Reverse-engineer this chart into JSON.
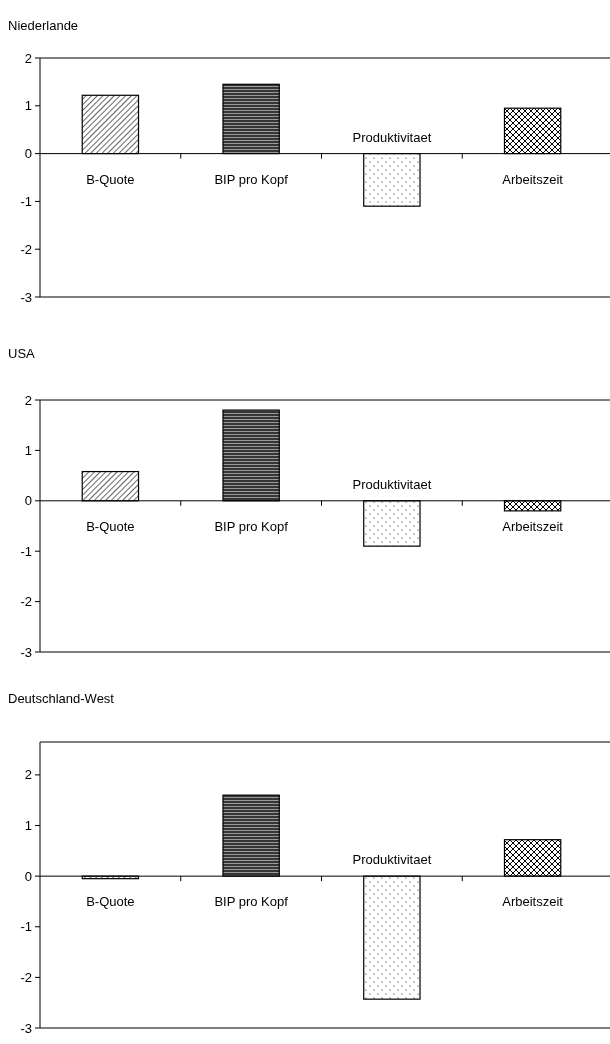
{
  "chart_data": [
    {
      "type": "bar",
      "title": "Niederlande",
      "categories": [
        "B-Quote",
        "BIP pro Kopf",
        "Produktivitaet",
        "Arbeitszeit"
      ],
      "values": [
        1.22,
        1.45,
        -1.1,
        0.95
      ],
      "ylim": [
        -3,
        2
      ],
      "yticks": [
        -3,
        -2,
        -1,
        0,
        1,
        2
      ]
    },
    {
      "type": "bar",
      "title": "USA",
      "categories": [
        "B-Quote",
        "BIP pro Kopf",
        "Produktivitaet",
        "Arbeitszeit"
      ],
      "values": [
        0.58,
        1.8,
        -0.9,
        -0.2
      ],
      "ylim": [
        -3,
        2
      ],
      "yticks": [
        -3,
        -2,
        -1,
        0,
        1,
        2
      ]
    },
    {
      "type": "bar",
      "title": "Deutschland-West",
      "categories": [
        "B-Quote",
        "BIP pro Kopf",
        "Produktivitaet",
        "Arbeitszeit"
      ],
      "values": [
        -0.05,
        1.6,
        -2.43,
        0.72
      ],
      "ylim": [
        -3,
        2.65
      ],
      "yticks": [
        -3,
        -2,
        -1,
        0,
        1,
        2
      ]
    }
  ]
}
